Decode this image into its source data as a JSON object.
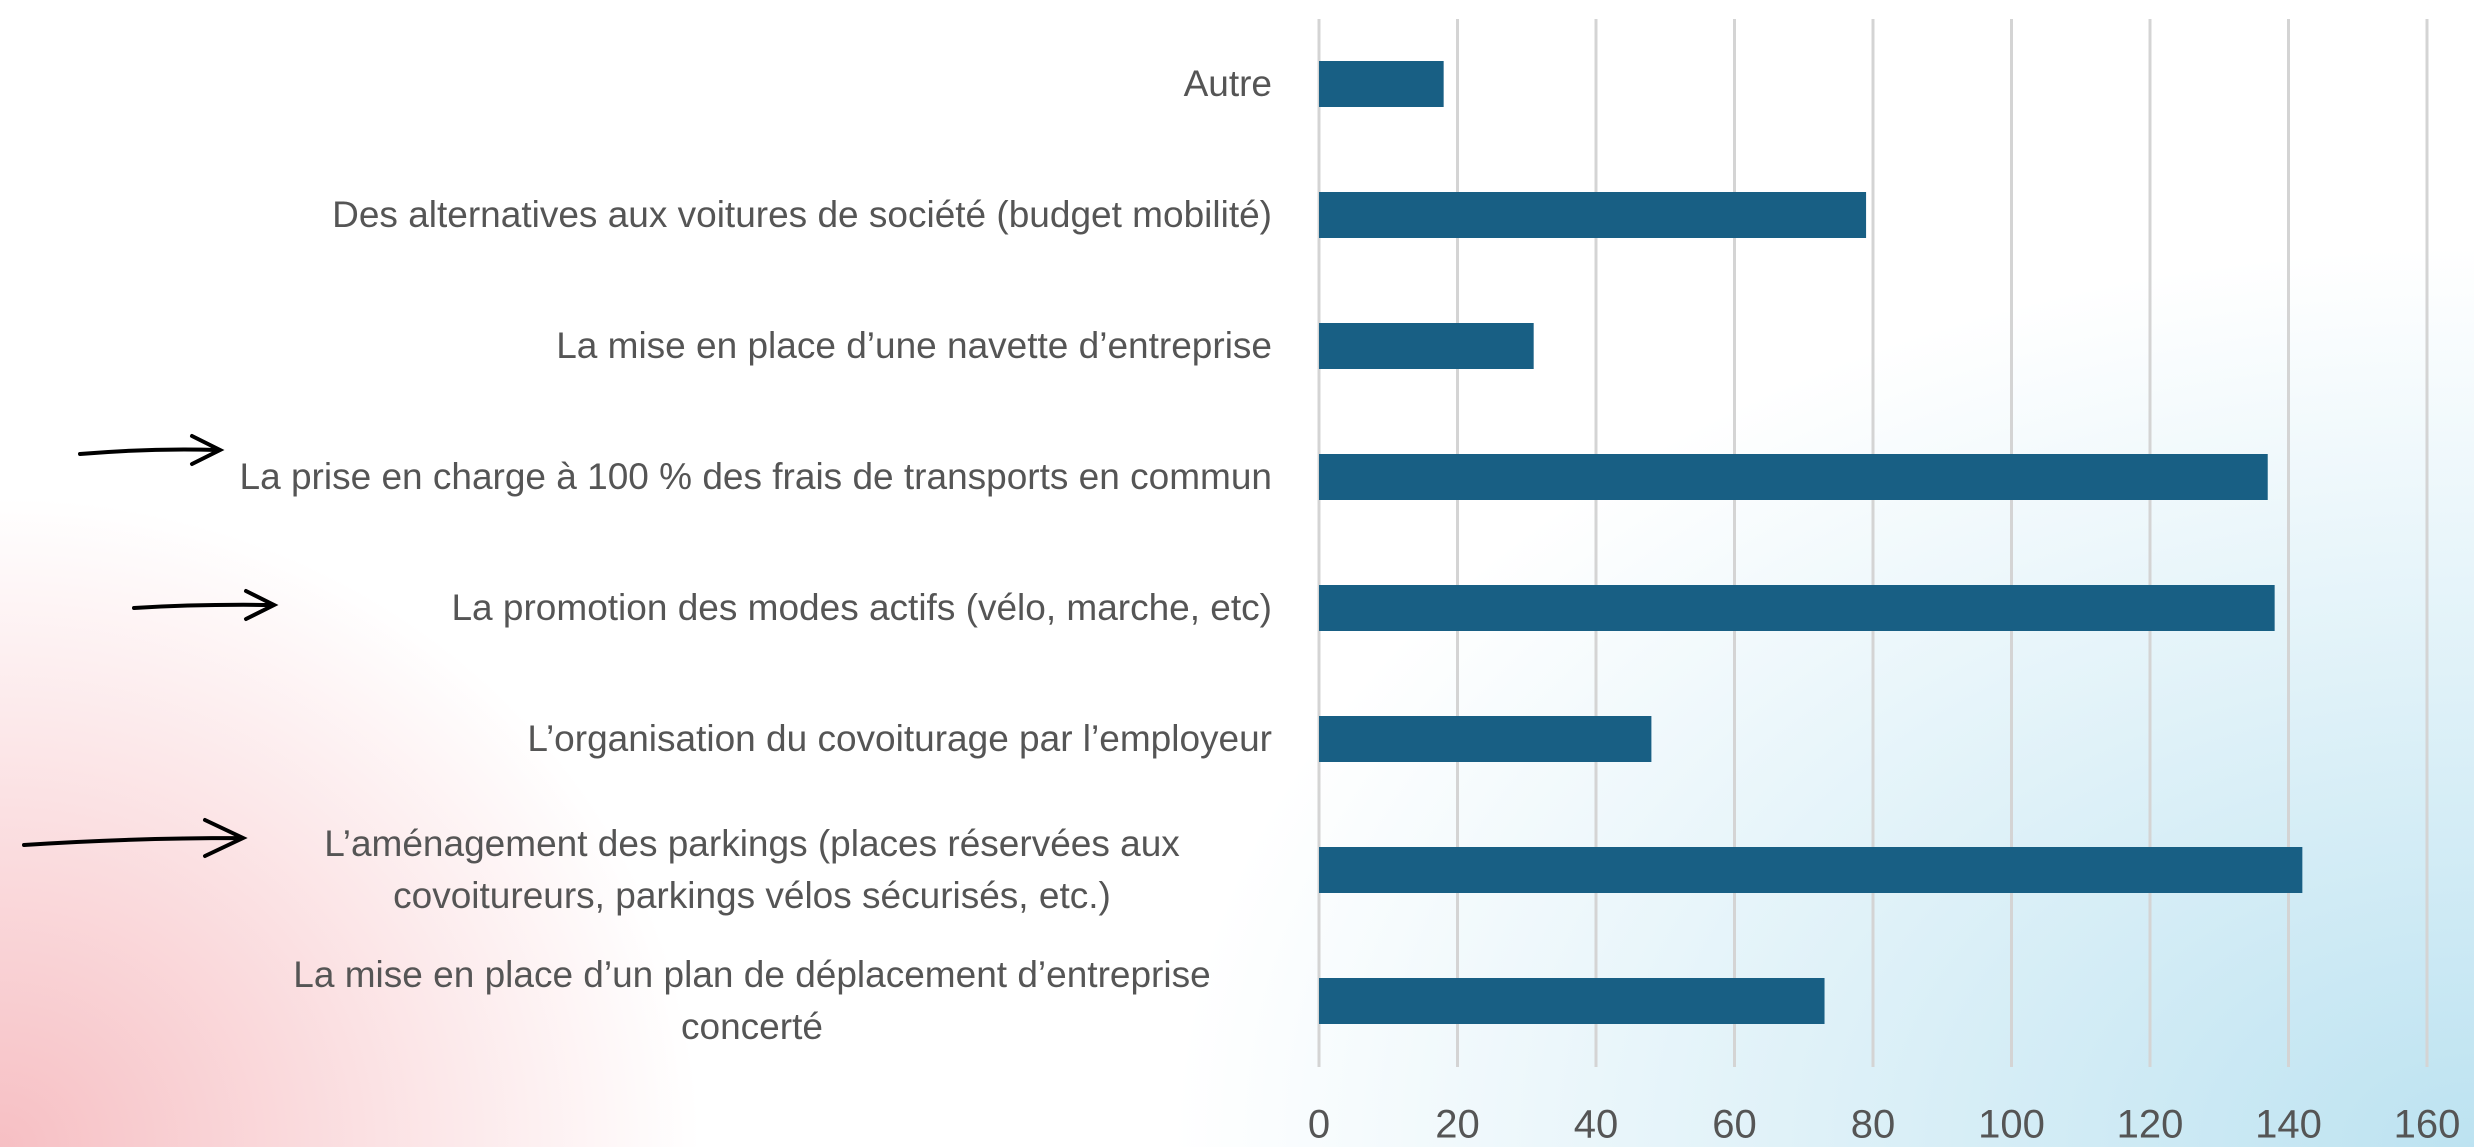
{
  "chart_data": {
    "type": "bar",
    "orientation": "horizontal",
    "categories": [
      "Autre",
      "Des alternatives aux voitures de société (budget mobilité)",
      "La mise en place d’une navette d’entreprise",
      "La prise en charge à 100 % des frais de transports en commun",
      "La promotion des modes actifs (vélo, marche, etc)",
      "L’organisation du covoiturage par l’employeur",
      "L’aménagement des parkings (places réservées aux covoitureurs, parkings vélos sécurisés, etc.)",
      "La mise en place d’un plan de déplacement d’entreprise concerté"
    ],
    "values": [
      18,
      79,
      31,
      137,
      138,
      48,
      142,
      73
    ],
    "color": "#185f84",
    "xlim": [
      0,
      160
    ],
    "xticks": [
      0,
      20,
      40,
      60,
      80,
      100,
      120,
      140,
      160
    ],
    "grid": true
  }
}
